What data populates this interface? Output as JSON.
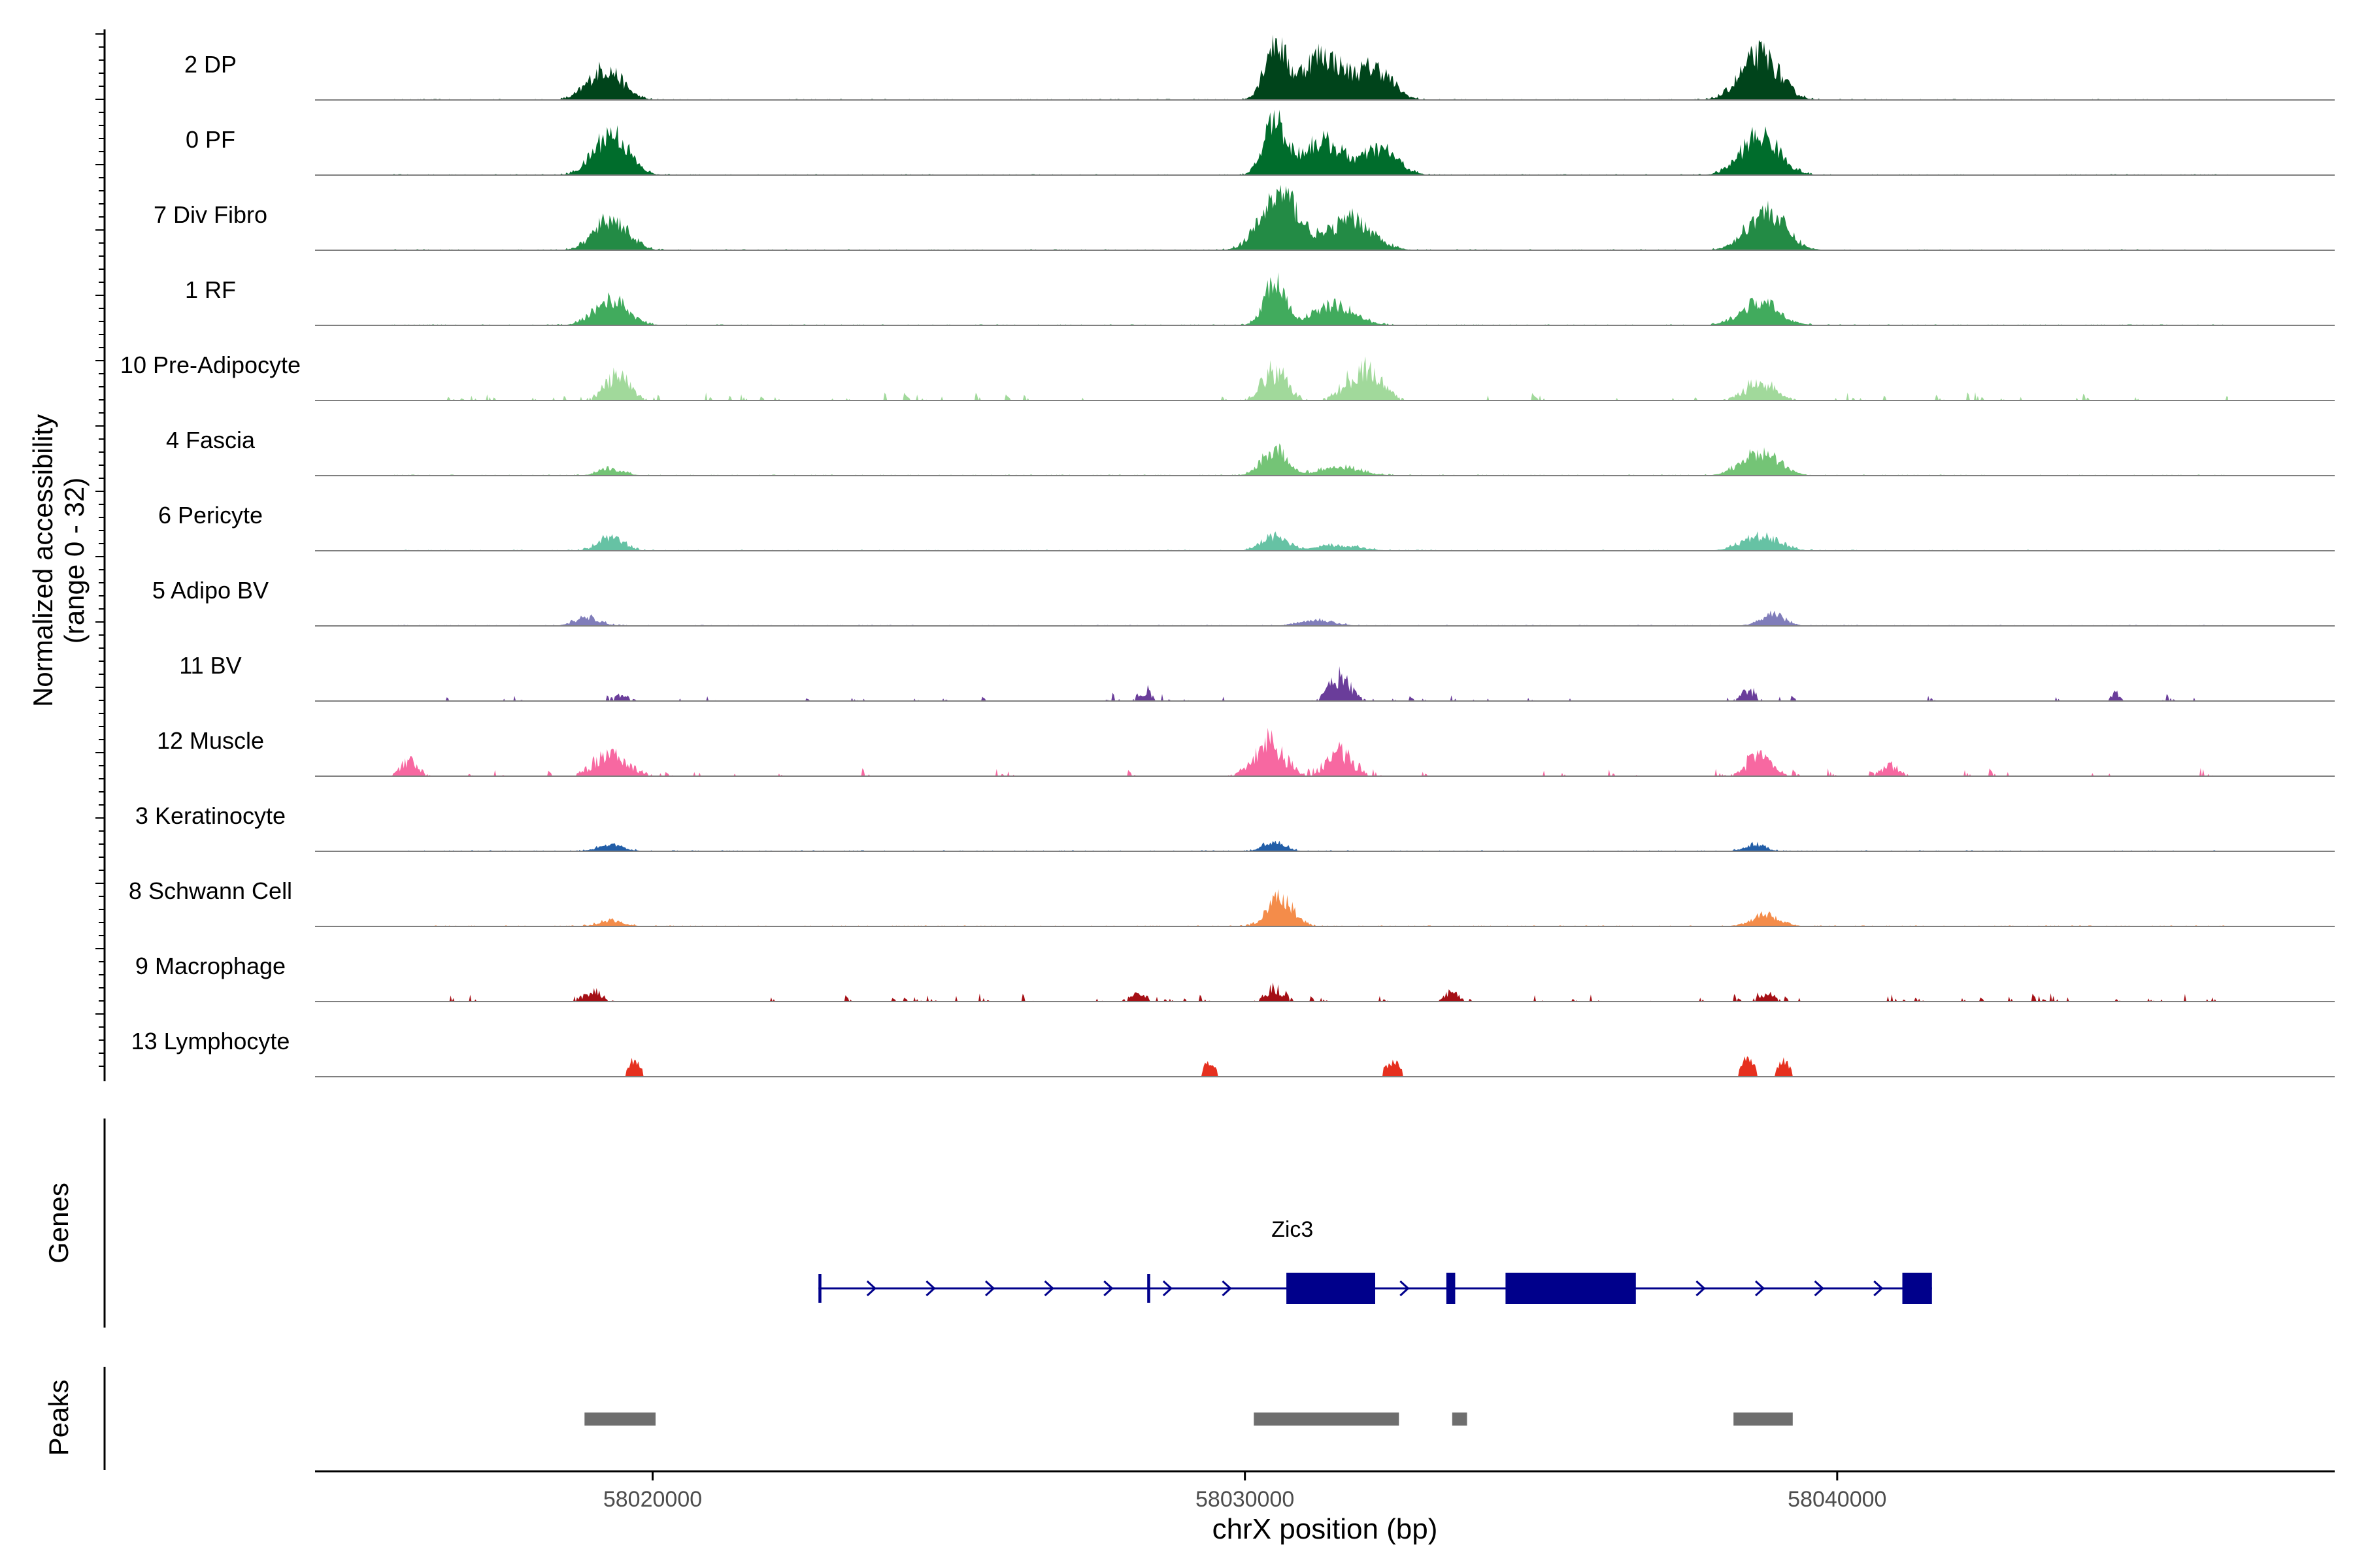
{
  "chart_data": {
    "type": "area",
    "subtype": "genome-coverage-track",
    "chromosome": "chrX",
    "xlabel": "chrX position (bp)",
    "xlim": [
      58014300,
      58048400
    ],
    "xticks": [
      58020000,
      58030000,
      58040000
    ],
    "xtick_labels": [
      "58020000",
      "58030000",
      "58040000"
    ],
    "coverage": {
      "ylabel_line1": "Normalized accessibility",
      "ylabel_line2": "(range 0 - 32)",
      "ylim": [
        0,
        32
      ],
      "tracks": [
        {
          "name": "2 DP",
          "color": "#00441b",
          "style": "broad",
          "scale": 0.55,
          "peaks": [
            [
              58019200,
              400,
              0.55
            ],
            [
              58030500,
              250,
              1.0
            ],
            [
              58031300,
              500,
              0.8
            ],
            [
              58032200,
              400,
              0.55
            ],
            [
              58038700,
              450,
              0.8
            ]
          ]
        },
        {
          "name": "0 PF",
          "color": "#006d2c",
          "style": "broad",
          "scale": 0.55,
          "peaks": [
            [
              58019300,
              400,
              0.75
            ],
            [
              58030500,
              250,
              1.0
            ],
            [
              58031300,
              500,
              0.6
            ],
            [
              58032300,
              400,
              0.45
            ],
            [
              58038700,
              450,
              0.7
            ]
          ]
        },
        {
          "name": "7 Div Fibro",
          "color": "#238b45",
          "style": "broad",
          "scale": 0.55,
          "peaks": [
            [
              58019300,
              400,
              0.55
            ],
            [
              58030600,
              450,
              1.0
            ],
            [
              58031800,
              500,
              0.55
            ],
            [
              58038800,
              450,
              0.7
            ]
          ]
        },
        {
          "name": "1 RF",
          "color": "#41ab5d",
          "style": "broad",
          "scale": 0.55,
          "peaks": [
            [
              58019300,
              400,
              0.45
            ],
            [
              58030500,
              250,
              0.75
            ],
            [
              58031500,
              500,
              0.35
            ],
            [
              58038700,
              450,
              0.4
            ]
          ]
        },
        {
          "name": "10 Pre-Adipocyte",
          "color": "#a1d99b",
          "style": "sparse",
          "scale": 0.55,
          "peaks": [
            [
              58019400,
              300,
              0.45
            ],
            [
              58030500,
              300,
              0.55
            ],
            [
              58032000,
              400,
              0.6
            ],
            [
              58038700,
              350,
              0.35
            ]
          ]
        },
        {
          "name": "4 Fascia",
          "color": "#74c476",
          "style": "broad",
          "scale": 0.55,
          "peaks": [
            [
              58019300,
              300,
              0.12
            ],
            [
              58030500,
              300,
              0.45
            ],
            [
              58031600,
              500,
              0.15
            ],
            [
              58038700,
              450,
              0.4
            ]
          ]
        },
        {
          "name": "6 Pericyte",
          "color": "#66c2a4",
          "style": "broad",
          "scale": 0.55,
          "peaks": [
            [
              58019300,
              300,
              0.25
            ],
            [
              58030500,
              300,
              0.25
            ],
            [
              58031600,
              500,
              0.1
            ],
            [
              58038700,
              450,
              0.25
            ]
          ]
        },
        {
          "name": "5 Adipo BV",
          "color": "#807dba",
          "style": "broad",
          "scale": 0.55,
          "peaks": [
            [
              58018900,
              300,
              0.15
            ],
            [
              58031200,
              400,
              0.12
            ],
            [
              58038900,
              300,
              0.2
            ]
          ]
        },
        {
          "name": "11 BV",
          "color": "#6a3d9a",
          "style": "sparse",
          "scale": 0.55,
          "peaks": [
            [
              58019500,
              150,
              0.12
            ],
            [
              58028300,
              150,
              0.18
            ],
            [
              58031600,
              250,
              0.45
            ],
            [
              58038500,
              150,
              0.2
            ],
            [
              58044700,
              100,
              0.15
            ]
          ]
        },
        {
          "name": "12 Muscle",
          "color": "#f768a1",
          "style": "sparse",
          "scale": 0.55,
          "peaks": [
            [
              58015900,
              200,
              0.3
            ],
            [
              58019300,
              400,
              0.4
            ],
            [
              58030400,
              350,
              0.65
            ],
            [
              58031600,
              300,
              0.45
            ],
            [
              58038700,
              300,
              0.35
            ],
            [
              58040900,
              200,
              0.2
            ]
          ]
        },
        {
          "name": "3 Keratinocyte",
          "color": "#225ea8",
          "style": "broad",
          "scale": 0.55,
          "peaks": [
            [
              58019300,
              300,
              0.12
            ],
            [
              58030500,
              250,
              0.18
            ],
            [
              58038600,
              250,
              0.12
            ]
          ]
        },
        {
          "name": "8 Schwann Cell",
          "color": "#f48c4a",
          "style": "broad",
          "scale": 0.55,
          "peaks": [
            [
              58019300,
              300,
              0.1
            ],
            [
              58030600,
              300,
              0.5
            ],
            [
              58038800,
              350,
              0.2
            ]
          ]
        },
        {
          "name": "9 Macrophage",
          "color": "#a50f15",
          "style": "sparse",
          "scale": 0.55,
          "peaks": [
            [
              58019000,
              200,
              0.2
            ],
            [
              58028200,
              200,
              0.15
            ],
            [
              58030500,
              200,
              0.25
            ],
            [
              58033500,
              150,
              0.2
            ],
            [
              58038800,
              200,
              0.15
            ]
          ]
        },
        {
          "name": "13 Lymphocyte",
          "color": "#e6301f",
          "style": "blocks",
          "scale": 0.55,
          "peaks": [
            [
              58019700,
              150,
              0.3
            ],
            [
              58029400,
              150,
              0.25
            ],
            [
              58032500,
              200,
              0.25
            ],
            [
              58038500,
              150,
              0.35
            ],
            [
              58039100,
              150,
              0.28
            ]
          ]
        }
      ]
    },
    "genes": {
      "label": "Genes",
      "color": "#00008b",
      "items": [
        {
          "name": "Zic3",
          "strand": "+",
          "start": 58022800,
          "end": 58041600,
          "exons": [
            [
              58022800,
              58022850
            ],
            [
              58028350,
              58028400
            ],
            [
              58030700,
              58032200
            ],
            [
              58033400,
              58033550
            ],
            [
              58034400,
              58036600
            ],
            [
              58041100,
              58041600
            ]
          ]
        }
      ]
    },
    "peaks": {
      "label": "Peaks",
      "color": "#6e6e6e",
      "regions": [
        [
          58018850,
          58020050
        ],
        [
          58030150,
          58032600
        ],
        [
          58033500,
          58033750
        ],
        [
          58038250,
          58039250
        ]
      ]
    }
  }
}
